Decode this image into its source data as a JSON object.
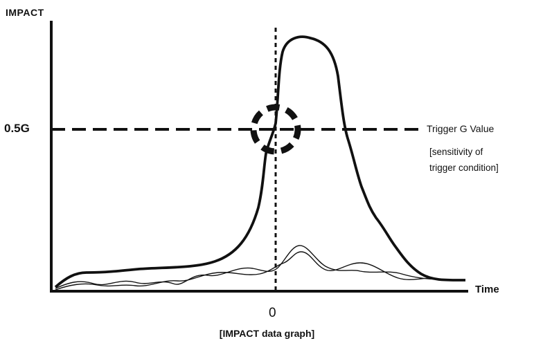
{
  "diagram": {
    "y_axis_title": "IMPACT",
    "x_axis_title": "Time",
    "x_zero_label": "0",
    "threshold_label": "0.5G",
    "trigger_label": "Trigger G Value",
    "trigger_note": "[sensitivity of\ntrigger condition]",
    "caption": "[IMPACT data graph]"
  },
  "colors": {
    "ink": "#111111",
    "background": "#ffffff"
  }
}
